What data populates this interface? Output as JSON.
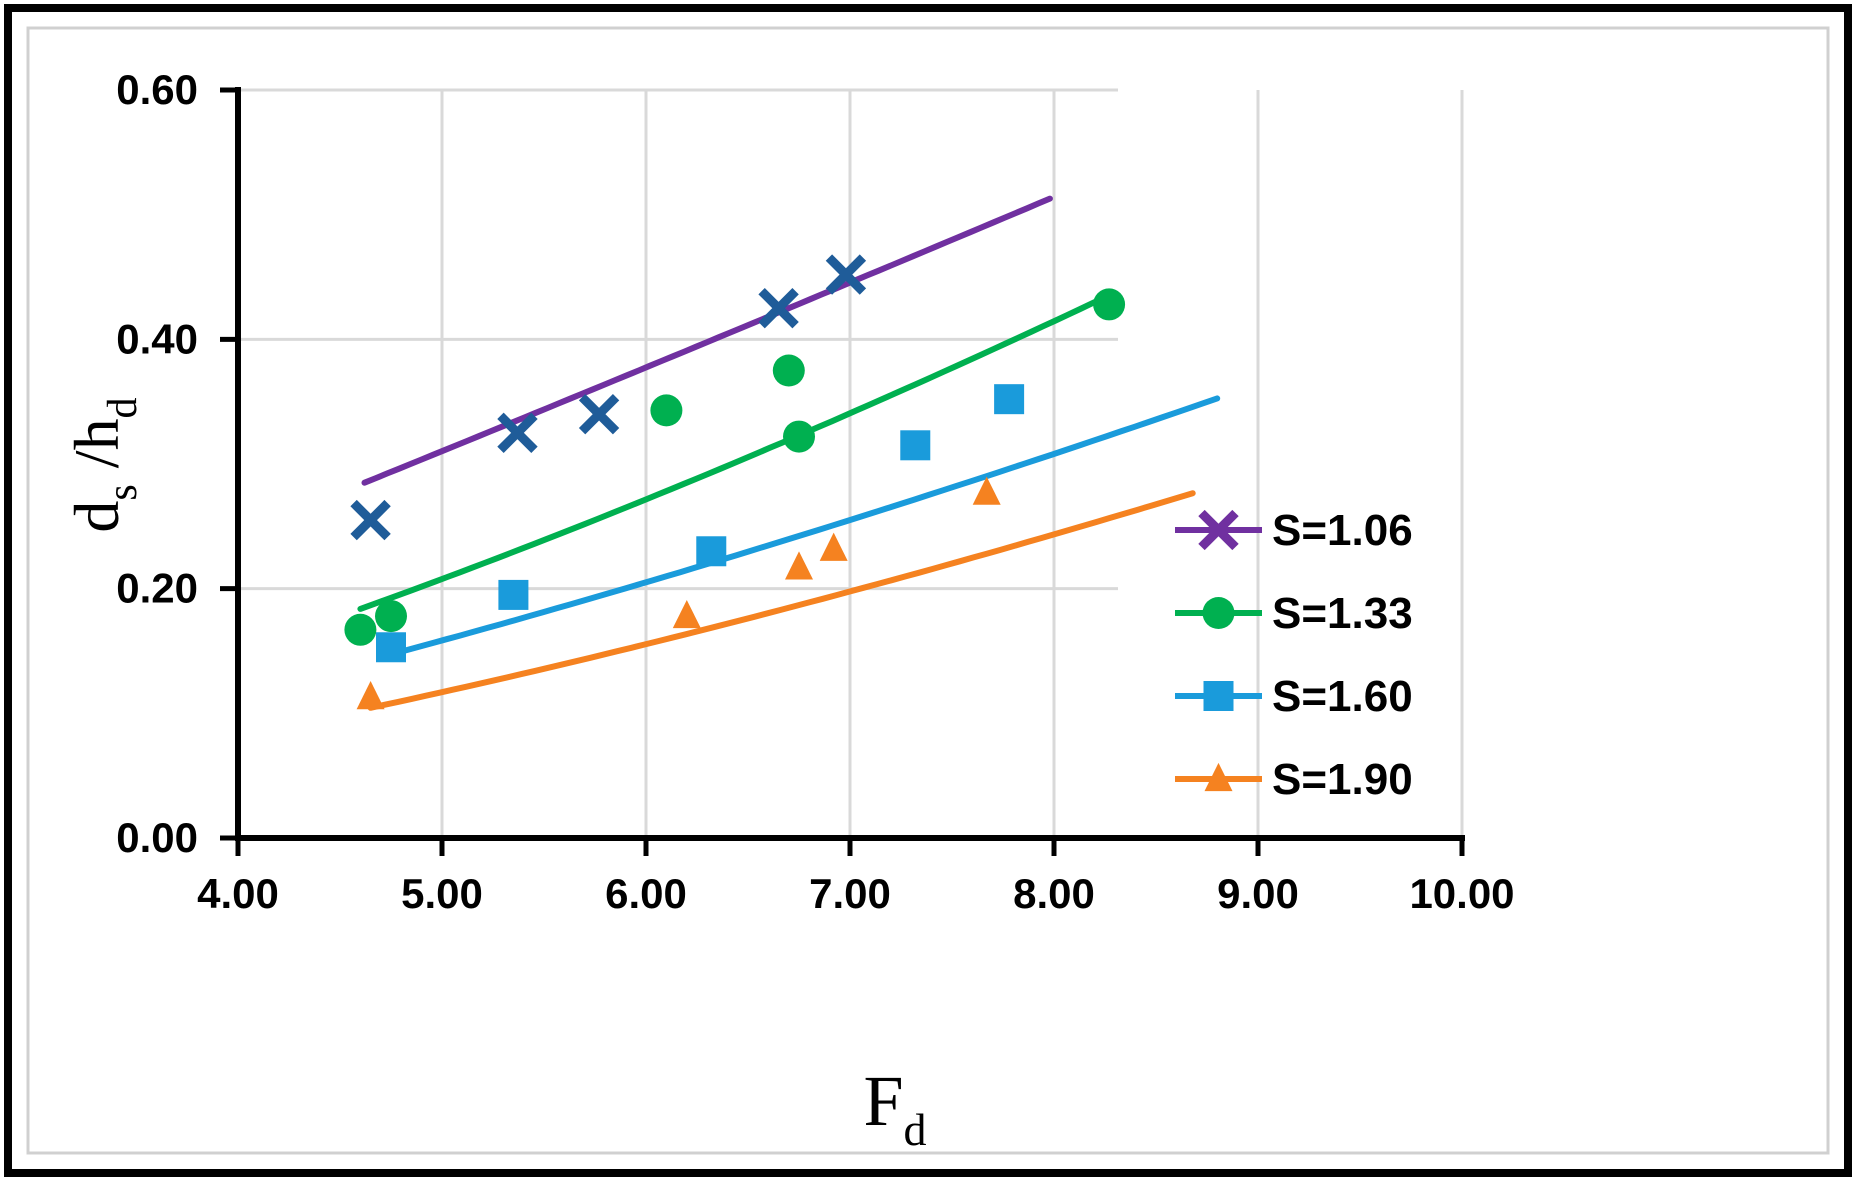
{
  "chart_data": {
    "type": "scatter",
    "title": "",
    "xlabel": {
      "main": "F",
      "sub": "d"
    },
    "ylabel": {
      "part1": "d",
      "sub1": "s",
      "part2": " /h",
      "sub2": "d"
    },
    "xlim": [
      4.0,
      10.0
    ],
    "ylim": [
      0.0,
      0.6
    ],
    "xticks": [
      4.0,
      5.0,
      6.0,
      7.0,
      8.0,
      9.0,
      10.0
    ],
    "yticks": [
      0.0,
      0.2,
      0.4,
      0.6
    ],
    "xtick_labels": [
      "4.00",
      "5.00",
      "6.00",
      "7.00",
      "8.00",
      "9.00",
      "10.00"
    ],
    "ytick_labels": [
      "0.00",
      "0.20",
      "0.40",
      "0.60"
    ],
    "grid": true,
    "legend_position": "right",
    "series": [
      {
        "name": "S=1.06",
        "color": "#7030A0",
        "marker_color": "#1F5C99",
        "marker": "x",
        "points": [
          [
            4.65,
            0.255
          ],
          [
            5.37,
            0.325
          ],
          [
            5.77,
            0.34
          ],
          [
            6.65,
            0.425
          ],
          [
            6.98,
            0.452
          ]
        ],
        "fit": {
          "a": 0.055,
          "b": 1.075,
          "x_range": [
            4.62,
            7.98
          ]
        }
      },
      {
        "name": "S=1.33",
        "color": "#00B050",
        "marker_color": "#00B050",
        "marker": "circle",
        "points": [
          [
            4.6,
            0.167
          ],
          [
            4.75,
            0.178
          ],
          [
            6.1,
            0.343
          ],
          [
            6.7,
            0.375
          ],
          [
            6.75,
            0.322
          ],
          [
            8.27,
            0.428
          ]
        ],
        "fit": {
          "a": 0.0195,
          "b": 1.47,
          "x_range": [
            4.6,
            8.25
          ]
        }
      },
      {
        "name": "S=1.60",
        "color": "#1A9BDB",
        "marker_color": "#1A9BDB",
        "marker": "square",
        "points": [
          [
            4.75,
            0.153
          ],
          [
            5.35,
            0.195
          ],
          [
            6.32,
            0.23
          ],
          [
            7.32,
            0.315
          ],
          [
            7.78,
            0.352
          ]
        ],
        "fit": {
          "a": 0.01625,
          "b": 1.415,
          "x_range": [
            4.75,
            8.8
          ]
        }
      },
      {
        "name": "S=1.90",
        "color": "#F58220",
        "marker_color": "#F58220",
        "marker": "triangle",
        "points": [
          [
            4.65,
            0.113
          ],
          [
            6.2,
            0.178
          ],
          [
            6.75,
            0.217
          ],
          [
            6.92,
            0.232
          ],
          [
            7.67,
            0.277
          ]
        ],
        "fit": {
          "a": 0.0095,
          "b": 1.56,
          "x_range": [
            4.65,
            8.68
          ]
        }
      }
    ]
  }
}
